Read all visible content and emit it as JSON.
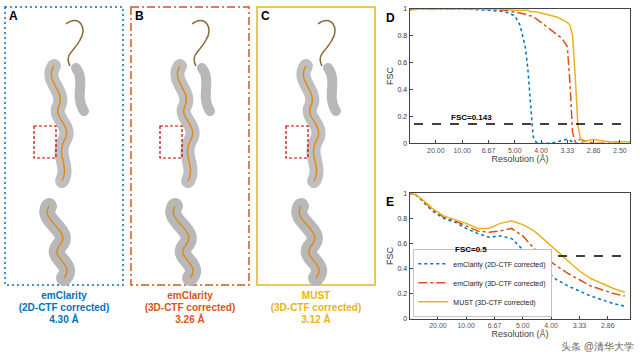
{
  "panels": [
    {
      "label": "A",
      "lines": [
        "emClarity",
        "(2D-CTF corrected)",
        "4.30 Å"
      ],
      "color": "#0072bd",
      "line_style": "dotted"
    },
    {
      "label": "B",
      "lines": [
        "emClarity",
        "(3D-CTF corrected)",
        "3.26 Å"
      ],
      "color": "#d95319",
      "line_style": "dashdot"
    },
    {
      "label": "C",
      "lines": [
        "MUST",
        "(3D-CTF corrected)",
        "3.12 Å"
      ],
      "color": "#edb120",
      "line_style": "solid"
    }
  ],
  "watermark": "头条 @清华大学",
  "chart_data": [
    {
      "panel_label": "D",
      "type": "line",
      "xlabel": "Resolution (Å)",
      "ylabel": "FSC",
      "xlim": [
        0,
        0.42
      ],
      "xticks": [
        {
          "value": 0.05,
          "label": "20.00"
        },
        {
          "value": 0.1,
          "label": "10.00"
        },
        {
          "value": 0.15,
          "label": "6.67"
        },
        {
          "value": 0.2,
          "label": "5.00"
        },
        {
          "value": 0.25,
          "label": "4.00"
        },
        {
          "value": 0.3,
          "label": "3.33"
        },
        {
          "value": 0.35,
          "label": "2.86"
        },
        {
          "value": 0.4,
          "label": "2.50"
        }
      ],
      "ylim": [
        0,
        1
      ],
      "yticks": [
        0,
        0.2,
        0.4,
        0.6,
        0.8,
        1
      ],
      "threshold": {
        "value": 0.143,
        "label": "FSC=0.143"
      },
      "x": [
        0,
        0.02,
        0.05,
        0.1,
        0.15,
        0.18,
        0.2,
        0.21,
        0.22,
        0.225,
        0.23,
        0.235,
        0.24,
        0.25,
        0.26,
        0.27,
        0.28,
        0.29,
        0.3,
        0.305,
        0.31,
        0.315,
        0.32,
        0.325,
        0.33,
        0.34,
        0.35,
        0.36,
        0.38,
        0.4,
        0.42
      ],
      "series": [
        {
          "color": "#0072bd",
          "line_style": "dotted",
          "values": [
            1,
            1,
            1,
            1,
            0.99,
            0.98,
            0.95,
            0.88,
            0.72,
            0.55,
            0.3,
            0.05,
            0.01,
            0,
            0,
            0,
            0.01,
            0.02,
            0.03,
            0.02,
            0.01,
            0,
            0,
            0,
            0,
            null,
            null,
            null,
            null,
            null,
            null
          ]
        },
        {
          "color": "#d95319",
          "line_style": "dashdot",
          "values": [
            1,
            1,
            1,
            1,
            1,
            0.99,
            0.98,
            0.97,
            0.96,
            0.95,
            0.95,
            0.94,
            0.93,
            0.9,
            0.87,
            0.84,
            0.81,
            0.78,
            0.72,
            0.45,
            0.08,
            0.01,
            0.02,
            0.03,
            0.02,
            0.01,
            0,
            0,
            0,
            0,
            null
          ]
        },
        {
          "color": "#edb120",
          "line_style": "solid",
          "values": [
            0.99,
            1,
            1,
            1,
            1,
            1,
            0.99,
            0.99,
            0.99,
            0.99,
            0.98,
            0.98,
            0.98,
            0.97,
            0.96,
            0.95,
            0.94,
            0.92,
            0.9,
            0.88,
            0.8,
            0.5,
            0.14,
            0.03,
            0.01,
            0.02,
            0.03,
            0.02,
            0.01,
            0.01,
            0.01
          ]
        }
      ]
    },
    {
      "panel_label": "E",
      "type": "line",
      "xlabel": "Resolution (Å)",
      "ylabel": "FSC",
      "xlim": [
        0,
        0.39
      ],
      "xticks": [
        {
          "value": 0.05,
          "label": "20.00"
        },
        {
          "value": 0.1,
          "label": "10.00"
        },
        {
          "value": 0.15,
          "label": "6.67"
        },
        {
          "value": 0.2,
          "label": "5.00"
        },
        {
          "value": 0.25,
          "label": "4.00"
        },
        {
          "value": 0.3,
          "label": "3.33"
        },
        {
          "value": 0.35,
          "label": "2.86"
        }
      ],
      "ylim": [
        0,
        1
      ],
      "yticks": [
        0,
        0.2,
        0.4,
        0.6,
        0.8,
        1
      ],
      "threshold": {
        "value": 0.5,
        "label": "FSC=0.5"
      },
      "legend": "bottom left",
      "x": [
        0,
        0.01,
        0.02,
        0.04,
        0.06,
        0.08,
        0.1,
        0.12,
        0.14,
        0.16,
        0.18,
        0.2,
        0.22,
        0.24,
        0.26,
        0.28,
        0.3,
        0.32,
        0.34,
        0.36,
        0.38
      ],
      "series": [
        {
          "name": "emClarity (2D-CTF corrected)",
          "color": "#0072bd",
          "line_style": "dotted",
          "values": [
            1,
            0.99,
            0.95,
            0.86,
            0.8,
            0.77,
            0.72,
            0.68,
            0.65,
            0.66,
            0.64,
            0.55,
            0.46,
            0.38,
            0.31,
            0.26,
            0.22,
            0.18,
            0.15,
            0.12,
            0.1
          ]
        },
        {
          "name": "emClarity (3D-CTF corrected)",
          "color": "#d95319",
          "line_style": "dashdot",
          "values": [
            1,
            0.99,
            0.96,
            0.87,
            0.81,
            0.78,
            0.74,
            0.7,
            0.69,
            0.7,
            0.72,
            0.66,
            0.56,
            0.48,
            0.42,
            0.36,
            0.31,
            0.26,
            0.23,
            0.2,
            0.18
          ]
        },
        {
          "name": "MUST (3D-CTF corrected)",
          "color": "#edb120",
          "line_style": "solid",
          "values": [
            1,
            0.99,
            0.96,
            0.88,
            0.82,
            0.79,
            0.76,
            0.72,
            0.72,
            0.76,
            0.78,
            0.75,
            0.7,
            0.62,
            0.54,
            0.46,
            0.38,
            0.32,
            0.28,
            0.24,
            0.21
          ]
        }
      ]
    }
  ]
}
